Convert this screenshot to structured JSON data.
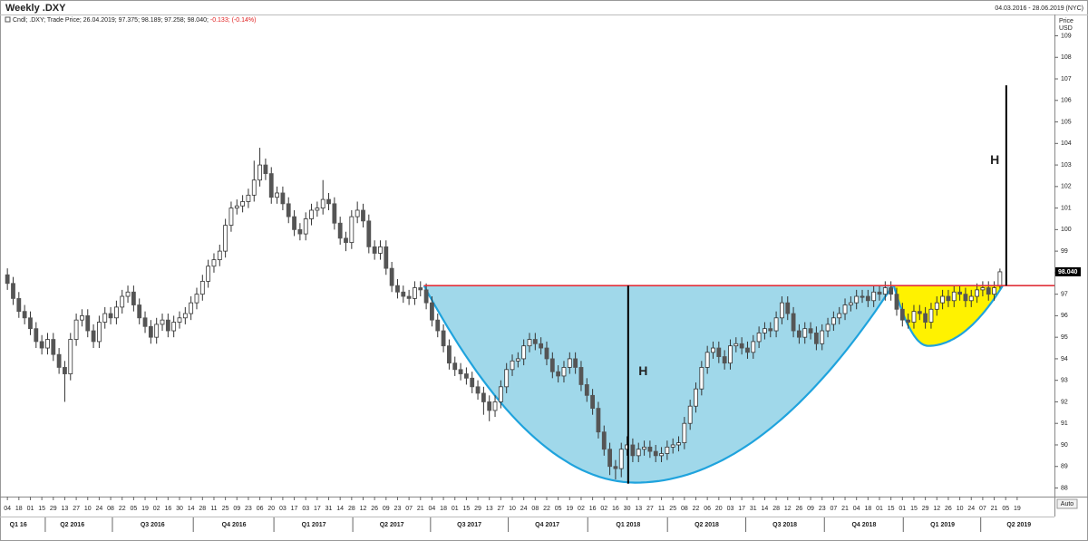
{
  "chart_data": {
    "type": "candlestick",
    "title": "Weekly .DXY",
    "date_range": "04.03.2016 - 28.06.2019 (NYC)",
    "info": "Cndl; .DXY; Trade Price; 26.04.2019; 97.375; 98.189; 97.258; 98.040;",
    "change": "-0.133; (-0.14%)",
    "y_label": "Price",
    "y_unit": "USD",
    "last_value_label": "98.040",
    "scale_mode": "Auto",
    "up_color": "#ffffff",
    "down_color": "#555555",
    "grid": false,
    "open": [
      97.9,
      97.5,
      96.8,
      96.2,
      95.9,
      95.4,
      94.8,
      94.5,
      94.9,
      94.2,
      93.6,
      93.3,
      94.9,
      95.8,
      96.0,
      95.3,
      94.8,
      95.7,
      96.1,
      95.9,
      96.4,
      96.9,
      97.1,
      96.5,
      95.9,
      95.5,
      95.0,
      95.6,
      95.8,
      95.3,
      95.7,
      95.9,
      96.1,
      96.6,
      97.0,
      97.6,
      98.3,
      98.6,
      99.0,
      100.2,
      101.0,
      101.1,
      101.3,
      101.6,
      102.3,
      103.0,
      102.6,
      101.5,
      101.7,
      101.2,
      100.6,
      100.0,
      99.8,
      100.5,
      100.9,
      101.0,
      101.4,
      101.2,
      100.3,
      99.6,
      99.4,
      100.6,
      100.9,
      100.4,
      99.2,
      98.9,
      99.2,
      98.2,
      97.4,
      97.1,
      96.9,
      96.8,
      97.3,
      97.2,
      96.6,
      95.8,
      95.3,
      94.6,
      93.8,
      93.5,
      93.3,
      93.1,
      92.7,
      92.4,
      92.0,
      91.6,
      92.0,
      92.7,
      93.5,
      93.9,
      94.0,
      94.6,
      94.9,
      94.7,
      94.5,
      94.0,
      93.4,
      93.2,
      93.6,
      94.0,
      93.6,
      92.8,
      92.3,
      91.7,
      90.6,
      89.8,
      89.0,
      88.9,
      89.8,
      90.0,
      89.5,
      89.8,
      89.9,
      89.7,
      89.5,
      89.6,
      89.9,
      90.0,
      90.1,
      91.0,
      91.8,
      92.6,
      93.6,
      94.3,
      94.5,
      94.1,
      93.8,
      94.6,
      94.7,
      94.5,
      94.3,
      94.8,
      95.2,
      95.4,
      95.3,
      95.9,
      96.6,
      96.1,
      95.3,
      95.0,
      95.4,
      95.2,
      94.7,
      95.3,
      95.6,
      95.9,
      96.1,
      96.5,
      96.6,
      96.9,
      96.9,
      96.7,
      97.1,
      97.0,
      97.3,
      97.0,
      96.3,
      95.8,
      95.7,
      96.2,
      96.1,
      95.7,
      96.3,
      96.6,
      96.9,
      96.7,
      97.1,
      97.0,
      96.7,
      96.9,
      97.2,
      97.3,
      97.0,
      97.375
    ],
    "high": [
      98.2,
      97.8,
      97.1,
      96.5,
      96.2,
      95.7,
      95.1,
      95.2,
      95.2,
      94.5,
      93.9,
      95.2,
      96.1,
      96.3,
      96.3,
      95.6,
      96.0,
      96.4,
      96.4,
      96.7,
      97.2,
      97.4,
      97.4,
      96.8,
      96.2,
      95.8,
      95.9,
      96.1,
      96.1,
      96.0,
      96.2,
      96.4,
      96.9,
      97.3,
      97.9,
      98.6,
      98.9,
      99.3,
      100.5,
      101.3,
      101.4,
      101.6,
      101.9,
      103.2,
      103.8,
      103.3,
      102.9,
      102.0,
      102.0,
      101.5,
      100.9,
      100.3,
      100.8,
      101.2,
      101.3,
      102.3,
      101.7,
      101.5,
      100.6,
      99.9,
      100.9,
      101.3,
      101.2,
      100.7,
      99.5,
      99.5,
      99.5,
      98.5,
      97.7,
      97.4,
      97.2,
      97.6,
      97.6,
      97.5,
      96.9,
      96.1,
      95.6,
      94.9,
      94.1,
      93.8,
      93.6,
      93.4,
      93.0,
      92.7,
      92.3,
      92.3,
      93.0,
      93.8,
      94.2,
      94.3,
      94.9,
      95.2,
      95.2,
      95.0,
      94.8,
      94.3,
      93.7,
      93.9,
      94.3,
      94.3,
      93.9,
      93.1,
      92.6,
      92.0,
      90.9,
      90.1,
      89.3,
      90.1,
      90.4,
      90.3,
      90.1,
      90.2,
      90.2,
      90.0,
      89.9,
      90.2,
      90.3,
      90.4,
      91.3,
      92.1,
      92.9,
      93.9,
      94.6,
      94.8,
      94.8,
      94.4,
      94.9,
      95.0,
      95.0,
      94.8,
      95.1,
      95.5,
      95.7,
      95.7,
      96.2,
      96.9,
      96.9,
      96.4,
      95.6,
      95.7,
      95.7,
      95.5,
      95.6,
      95.9,
      96.2,
      96.4,
      96.8,
      96.9,
      97.2,
      97.2,
      97.2,
      97.4,
      97.4,
      97.6,
      97.6,
      97.3,
      96.6,
      96.1,
      96.5,
      96.5,
      96.4,
      96.6,
      96.9,
      97.2,
      97.2,
      97.4,
      97.4,
      97.3,
      97.2,
      97.5,
      97.6,
      97.6,
      97.6,
      98.189
    ],
    "low": [
      97.2,
      96.5,
      95.9,
      95.6,
      95.1,
      94.5,
      94.2,
      94.2,
      93.9,
      93.3,
      92.0,
      93.0,
      94.6,
      95.5,
      95.0,
      94.5,
      94.5,
      95.4,
      95.6,
      95.6,
      96.1,
      96.6,
      96.2,
      95.6,
      95.2,
      94.7,
      94.7,
      95.3,
      95.0,
      95.0,
      95.4,
      95.6,
      95.8,
      96.3,
      96.7,
      97.3,
      98.0,
      98.3,
      98.7,
      99.9,
      100.7,
      100.8,
      101.0,
      101.3,
      102.0,
      102.3,
      101.2,
      101.2,
      100.9,
      100.3,
      99.7,
      99.5,
      99.5,
      100.2,
      100.6,
      100.7,
      100.9,
      100.0,
      99.3,
      99.0,
      99.1,
      100.3,
      100.1,
      98.9,
      98.6,
      98.6,
      97.9,
      97.1,
      96.8,
      96.6,
      96.5,
      96.5,
      96.9,
      96.3,
      95.5,
      95.0,
      94.3,
      93.5,
      93.2,
      93.0,
      92.8,
      92.4,
      92.1,
      91.4,
      91.1,
      91.3,
      91.7,
      92.4,
      93.2,
      93.6,
      93.7,
      94.3,
      94.4,
      94.2,
      93.7,
      93.1,
      92.9,
      92.9,
      93.3,
      93.3,
      92.5,
      92.0,
      91.4,
      90.3,
      89.5,
      88.6,
      88.4,
      88.5,
      89.5,
      89.2,
      89.2,
      89.5,
      89.4,
      89.2,
      89.2,
      89.3,
      89.6,
      89.7,
      89.8,
      90.7,
      91.5,
      92.3,
      93.3,
      94.0,
      93.8,
      93.5,
      93.5,
      94.3,
      94.2,
      94.0,
      94.0,
      94.5,
      94.9,
      95.0,
      95.0,
      95.6,
      95.8,
      95.0,
      94.7,
      94.7,
      94.9,
      94.4,
      94.4,
      95.0,
      95.3,
      95.6,
      95.8,
      96.2,
      96.3,
      96.6,
      96.4,
      96.4,
      96.7,
      96.7,
      96.7,
      96.0,
      95.5,
      95.4,
      95.4,
      95.8,
      95.4,
      95.4,
      96.0,
      96.3,
      96.4,
      96.4,
      96.7,
      96.4,
      96.4,
      96.6,
      96.9,
      96.7,
      96.7,
      97.258
    ],
    "close": [
      97.5,
      96.8,
      96.2,
      95.9,
      95.4,
      94.8,
      94.5,
      94.9,
      94.2,
      93.6,
      93.3,
      94.9,
      95.8,
      96.0,
      95.3,
      94.8,
      95.7,
      96.1,
      95.9,
      96.4,
      96.9,
      97.1,
      96.5,
      95.9,
      95.5,
      95.0,
      95.6,
      95.8,
      95.3,
      95.7,
      95.9,
      96.1,
      96.6,
      97.0,
      97.6,
      98.3,
      98.6,
      99.0,
      100.2,
      101.0,
      101.1,
      101.3,
      101.6,
      102.3,
      103.0,
      102.6,
      101.5,
      101.7,
      101.2,
      100.6,
      100.0,
      99.8,
      100.5,
      100.9,
      101.0,
      101.4,
      101.2,
      100.3,
      99.6,
      99.4,
      100.6,
      100.9,
      100.4,
      99.2,
      98.9,
      99.2,
      98.2,
      97.4,
      97.1,
      96.9,
      96.8,
      97.3,
      97.2,
      96.6,
      95.8,
      95.3,
      94.6,
      93.8,
      93.5,
      93.3,
      93.1,
      92.7,
      92.4,
      92.0,
      91.6,
      92.0,
      92.7,
      93.5,
      93.9,
      94.0,
      94.6,
      94.9,
      94.7,
      94.5,
      94.0,
      93.4,
      93.2,
      93.6,
      94.0,
      93.6,
      92.8,
      92.3,
      91.7,
      90.6,
      89.8,
      89.0,
      88.9,
      89.8,
      90.0,
      89.5,
      89.8,
      89.9,
      89.7,
      89.5,
      89.6,
      89.9,
      90.0,
      90.1,
      91.0,
      91.8,
      92.6,
      93.6,
      94.3,
      94.5,
      94.1,
      93.8,
      94.6,
      94.7,
      94.5,
      94.3,
      94.8,
      95.2,
      95.4,
      95.3,
      95.9,
      96.6,
      96.1,
      95.3,
      95.0,
      95.4,
      95.2,
      94.7,
      95.3,
      95.6,
      95.9,
      96.1,
      96.5,
      96.6,
      96.9,
      96.9,
      96.7,
      97.1,
      97.0,
      97.3,
      97.0,
      96.3,
      95.8,
      95.7,
      96.2,
      96.1,
      95.7,
      96.3,
      96.6,
      96.9,
      96.7,
      97.1,
      97.0,
      96.7,
      96.9,
      97.2,
      97.3,
      97.0,
      97.3,
      98.04
    ],
    "xlim": [
      -0.5,
      182.5
    ],
    "ylim": [
      87.6,
      109.4
    ],
    "yticks": [
      88,
      89,
      90,
      91,
      92,
      93,
      94,
      95,
      96,
      97,
      98,
      99,
      100,
      101,
      102,
      103,
      104,
      105,
      106,
      107,
      108,
      109
    ],
    "xticks": [
      {
        "value": 0,
        "label": "04"
      },
      {
        "value": 2,
        "label": "18"
      },
      {
        "value": 4,
        "label": "01"
      },
      {
        "value": 6,
        "label": "15"
      },
      {
        "value": 8,
        "label": "29"
      },
      {
        "value": 10,
        "label": "13"
      },
      {
        "value": 12,
        "label": "27"
      },
      {
        "value": 14,
        "label": "10"
      },
      {
        "value": 16,
        "label": "24"
      },
      {
        "value": 18,
        "label": "08"
      },
      {
        "value": 20,
        "label": "22"
      },
      {
        "value": 22,
        "label": "05"
      },
      {
        "value": 24,
        "label": "19"
      },
      {
        "value": 26,
        "label": "02"
      },
      {
        "value": 28,
        "label": "16"
      },
      {
        "value": 30,
        "label": "30"
      },
      {
        "value": 32,
        "label": "14"
      },
      {
        "value": 34,
        "label": "28"
      },
      {
        "value": 36,
        "label": "11"
      },
      {
        "value": 38,
        "label": "25"
      },
      {
        "value": 40,
        "label": "09"
      },
      {
        "value": 42,
        "label": "23"
      },
      {
        "value": 44,
        "label": "06"
      },
      {
        "value": 46,
        "label": "20"
      },
      {
        "value": 48,
        "label": "03"
      },
      {
        "value": 50,
        "label": "17"
      },
      {
        "value": 52,
        "label": "03"
      },
      {
        "value": 54,
        "label": "17"
      },
      {
        "value": 56,
        "label": "31"
      },
      {
        "value": 58,
        "label": "14"
      },
      {
        "value": 60,
        "label": "28"
      },
      {
        "value": 62,
        "label": "12"
      },
      {
        "value": 64,
        "label": "26"
      },
      {
        "value": 66,
        "label": "09"
      },
      {
        "value": 68,
        "label": "23"
      },
      {
        "value": 70,
        "label": "07"
      },
      {
        "value": 72,
        "label": "21"
      },
      {
        "value": 74,
        "label": "04"
      },
      {
        "value": 76,
        "label": "18"
      },
      {
        "value": 78,
        "label": "01"
      },
      {
        "value": 80,
        "label": "15"
      },
      {
        "value": 82,
        "label": "29"
      },
      {
        "value": 84,
        "label": "13"
      },
      {
        "value": 86,
        "label": "27"
      },
      {
        "value": 88,
        "label": "10"
      },
      {
        "value": 90,
        "label": "24"
      },
      {
        "value": 92,
        "label": "08"
      },
      {
        "value": 94,
        "label": "22"
      },
      {
        "value": 96,
        "label": "05"
      },
      {
        "value": 98,
        "label": "19"
      },
      {
        "value": 100,
        "label": "02"
      },
      {
        "value": 102,
        "label": "16"
      },
      {
        "value": 104,
        "label": "02"
      },
      {
        "value": 106,
        "label": "16"
      },
      {
        "value": 108,
        "label": "30"
      },
      {
        "value": 110,
        "label": "13"
      },
      {
        "value": 112,
        "label": "27"
      },
      {
        "value": 114,
        "label": "11"
      },
      {
        "value": 116,
        "label": "25"
      },
      {
        "value": 118,
        "label": "08"
      },
      {
        "value": 120,
        "label": "22"
      },
      {
        "value": 122,
        "label": "06"
      },
      {
        "value": 124,
        "label": "20"
      },
      {
        "value": 126,
        "label": "03"
      },
      {
        "value": 128,
        "label": "17"
      },
      {
        "value": 130,
        "label": "31"
      },
      {
        "value": 132,
        "label": "14"
      },
      {
        "value": 134,
        "label": "28"
      },
      {
        "value": 136,
        "label": "12"
      },
      {
        "value": 138,
        "label": "26"
      },
      {
        "value": 140,
        "label": "09"
      },
      {
        "value": 142,
        "label": "23"
      },
      {
        "value": 144,
        "label": "07"
      },
      {
        "value": 146,
        "label": "21"
      },
      {
        "value": 148,
        "label": "04"
      },
      {
        "value": 150,
        "label": "18"
      },
      {
        "value": 152,
        "label": "01"
      },
      {
        "value": 154,
        "label": "15"
      },
      {
        "value": 156,
        "label": "01"
      },
      {
        "value": 158,
        "label": "15"
      },
      {
        "value": 160,
        "label": "29"
      },
      {
        "value": 162,
        "label": "12"
      },
      {
        "value": 164,
        "label": "26"
      },
      {
        "value": 166,
        "label": "10"
      },
      {
        "value": 168,
        "label": "24"
      },
      {
        "value": 170,
        "label": "07"
      },
      {
        "value": 172,
        "label": "21"
      },
      {
        "value": 174,
        "label": "05"
      },
      {
        "value": 176,
        "label": "19"
      }
    ],
    "quarters": [
      {
        "value": 1.9,
        "label": "Q1 16"
      },
      {
        "value": 11.3,
        "label": "Q2 2016"
      },
      {
        "value": 25.3,
        "label": "Q3 2016"
      },
      {
        "value": 39.5,
        "label": "Q4 2016"
      },
      {
        "value": 53.4,
        "label": "Q1 2017"
      },
      {
        "value": 67,
        "label": "Q2 2017"
      },
      {
        "value": 80.5,
        "label": "Q3 2017"
      },
      {
        "value": 94.1,
        "label": "Q4 2017"
      },
      {
        "value": 108.2,
        "label": "Q1 2018"
      },
      {
        "value": 121.9,
        "label": "Q2 2018"
      },
      {
        "value": 135.5,
        "label": "Q3 2018"
      },
      {
        "value": 149.3,
        "label": "Q4 2018"
      },
      {
        "value": 163,
        "label": "Q1 2019"
      },
      {
        "value": 176.3,
        "label": "Q2 2019"
      }
    ],
    "resistance": {
      "y": 97.4,
      "x": [
        72.6,
        182.5
      ],
      "color": "#e0303a"
    },
    "cup": {
      "x": [
        72.6,
        109.5,
        154.3
      ],
      "y": [
        97.4,
        88.25,
        97.4
      ],
      "color": "#a0d8ea",
      "edge": "#1fa3dd"
    },
    "handle": {
      "x": [
        154.5,
        160.5,
        173.5
      ],
      "y": [
        97.4,
        94.6,
        97.4
      ],
      "color": "#fff200",
      "edge": "#1fa3dd"
    },
    "measures": [
      {
        "x": 108.2,
        "y": [
          97.4,
          88.2
        ]
      },
      {
        "x": 174.1,
        "y": [
          97.4,
          106.7
        ]
      }
    ],
    "annotations": [
      {
        "text": "H",
        "x": 110,
        "y": 93.4
      },
      {
        "text": "H",
        "x": 171.3,
        "y": 103.2
      }
    ]
  }
}
